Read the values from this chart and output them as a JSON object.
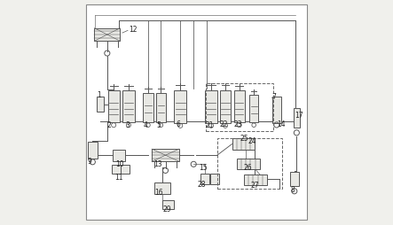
{
  "bg_color": "#f0f0ec",
  "border_color": "#888888",
  "line_color": "#555555",
  "dashed_color": "#666666",
  "component_fill": "#e8e8e4",
  "component_edge": "#555555",
  "label_color": "#222222",
  "label_fontsize": 5.5,
  "fig_width": 4.43,
  "fig_height": 2.55,
  "dpi": 100
}
